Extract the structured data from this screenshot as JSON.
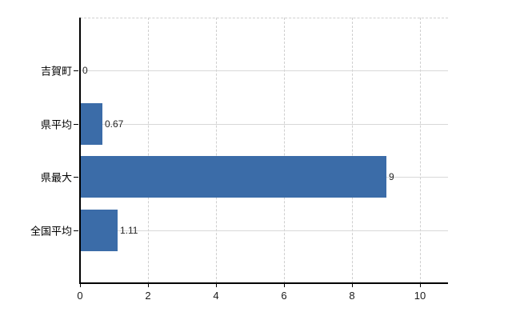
{
  "chart_data": {
    "type": "bar",
    "orientation": "horizontal",
    "title": "",
    "xlabel": "",
    "ylabel": "",
    "categories": [
      "吉賀町",
      "県平均",
      "県最大",
      "全国平均"
    ],
    "values": [
      0,
      0.67,
      9,
      1.11
    ],
    "value_labels": [
      "0",
      "0.67",
      "9",
      "1.11"
    ],
    "xtick_labels": [
      "0",
      "2",
      "4",
      "6",
      "8",
      "10"
    ],
    "xtick_values": [
      0,
      2,
      4,
      6,
      8,
      10
    ],
    "xlim": [
      0,
      10.8
    ],
    "grid": {
      "vertical": "dashed",
      "horizontal": "solid",
      "top_border": "dashed"
    },
    "colors": {
      "bar": "#3b6ca8",
      "vertical_gridline": "#cfcfcf",
      "horizontal_gridline": "#d8d8d8",
      "axis": "#000000",
      "tick_label": "#1a1a1a",
      "category_label": "#000000",
      "value_label": "#262626",
      "background": "#ffffff"
    }
  }
}
